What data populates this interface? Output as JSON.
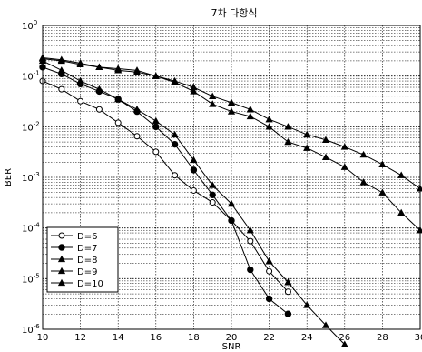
{
  "chart_data": {
    "type": "line",
    "title": "7차 다항식",
    "xlabel": "SNR",
    "ylabel": "BER",
    "xlim": [
      10,
      30
    ],
    "ylim": [
      1e-06,
      1
    ],
    "yscale": "log",
    "grid": true,
    "legend_position": "lower-left",
    "x_ticks": [
      "10",
      "12",
      "14",
      "16",
      "18",
      "20",
      "22",
      "24",
      "26",
      "28",
      "30"
    ],
    "y_ticks": [
      {
        "base": "10",
        "exp": "0",
        "value": 1
      },
      {
        "base": "10",
        "exp": "-1",
        "value": 0.1
      },
      {
        "base": "10",
        "exp": "-2",
        "value": 0.01
      },
      {
        "base": "10",
        "exp": "-3",
        "value": 0.001
      },
      {
        "base": "10",
        "exp": "-4",
        "value": 0.0001
      },
      {
        "base": "10",
        "exp": "-5",
        "value": 1e-05
      },
      {
        "base": "10",
        "exp": "-6",
        "value": 1e-06
      }
    ],
    "series": [
      {
        "name": "D=6",
        "marker": "open-circle",
        "x": [
          10,
          11,
          12,
          13,
          14,
          15,
          16,
          17,
          18,
          19,
          20,
          21,
          22,
          23
        ],
        "y": [
          0.08,
          0.055,
          0.032,
          0.022,
          0.012,
          0.0065,
          0.0032,
          0.0011,
          0.00055,
          0.00032,
          0.00014,
          5.5e-05,
          1.4e-05,
          5.5e-06
        ]
      },
      {
        "name": "D=7",
        "marker": "filled-circle",
        "x": [
          10,
          11,
          12,
          13,
          14,
          15,
          16,
          17,
          18,
          19,
          20,
          21,
          22,
          23
        ],
        "y": [
          0.15,
          0.11,
          0.07,
          0.05,
          0.035,
          0.02,
          0.01,
          0.0045,
          0.0014,
          0.00045,
          0.00014,
          1.5e-05,
          4e-06,
          2e-06
        ]
      },
      {
        "name": "D=8",
        "marker": "filled-triangle",
        "x": [
          10,
          11,
          12,
          13,
          14,
          15,
          16,
          17,
          18,
          19,
          20,
          21,
          22,
          23,
          24,
          25,
          26
        ],
        "y": [
          0.2,
          0.13,
          0.08,
          0.055,
          0.035,
          0.022,
          0.013,
          0.007,
          0.0022,
          0.0007,
          0.0003,
          9e-05,
          2.2e-05,
          8.5e-06,
          3e-06,
          1.2e-06,
          5e-07
        ]
      },
      {
        "name": "D=9",
        "marker": "filled-triangle",
        "x": [
          10,
          11,
          12,
          13,
          14,
          15,
          16,
          17,
          18,
          19,
          20,
          21,
          22,
          23,
          24,
          25,
          26,
          27,
          28,
          29,
          30
        ],
        "y": [
          0.22,
          0.2,
          0.17,
          0.15,
          0.13,
          0.12,
          0.1,
          0.075,
          0.05,
          0.028,
          0.02,
          0.016,
          0.01,
          0.005,
          0.0038,
          0.0025,
          0.0016,
          0.0008,
          0.0005,
          0.0002,
          9e-05
        ]
      },
      {
        "name": "D=10",
        "marker": "filled-triangle",
        "x": [
          10,
          11,
          12,
          13,
          14,
          15,
          16,
          17,
          18,
          19,
          20,
          21,
          22,
          23,
          24,
          25,
          26,
          27,
          28,
          29,
          30
        ],
        "y": [
          0.23,
          0.21,
          0.18,
          0.15,
          0.14,
          0.13,
          0.1,
          0.08,
          0.06,
          0.04,
          0.03,
          0.022,
          0.014,
          0.01,
          0.007,
          0.0055,
          0.004,
          0.0028,
          0.0018,
          0.0011,
          0.0006
        ]
      }
    ]
  }
}
